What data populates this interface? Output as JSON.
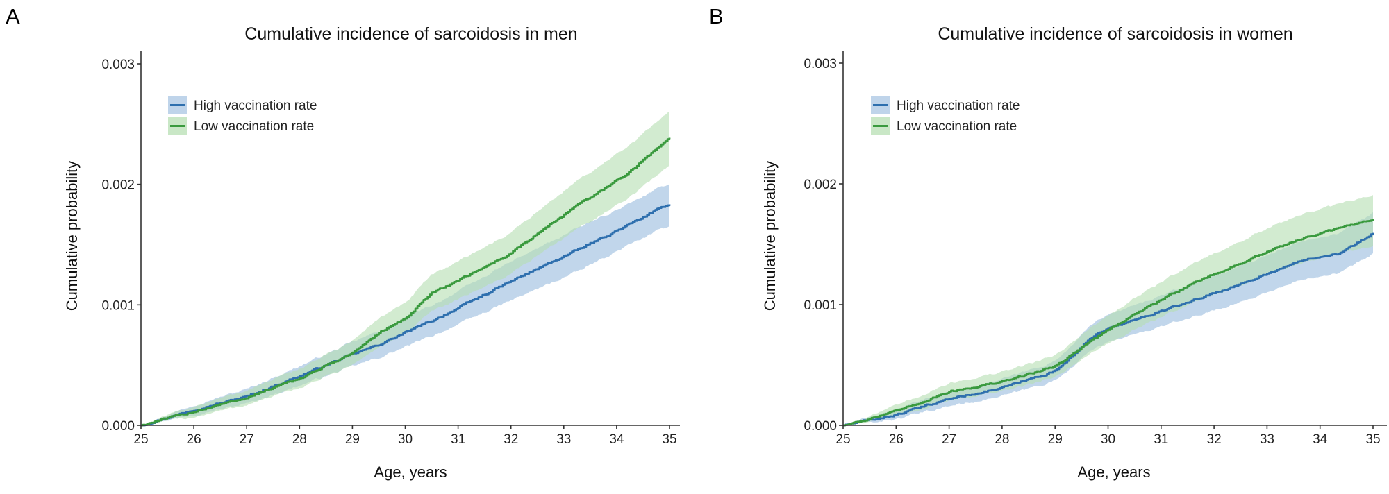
{
  "colors": {
    "high": "#2e6fae",
    "high_band": "#a9c6e3",
    "low": "#3a9a3e",
    "low_band": "#b7dfb3"
  },
  "chart_data": [
    {
      "panel_letter": "A",
      "type": "line",
      "title": "Cumulative incidence of sarcoidosis in men",
      "xlabel": "Age, years",
      "ylabel": "Cumulative probability",
      "xlim": [
        25,
        35
      ],
      "ylim": [
        0,
        0.003
      ],
      "xticks": [
        "25",
        "26",
        "27",
        "28",
        "29",
        "30",
        "31",
        "32",
        "33",
        "34",
        "35"
      ],
      "yticks": [
        "0.000",
        "0.001",
        "0.002",
        "0.003"
      ],
      "grid": false,
      "legend": {
        "position": "top-left",
        "entries": [
          "High vaccination rate",
          "Low vaccination rate"
        ]
      },
      "series": [
        {
          "name": "High vaccination rate",
          "x": [
            25,
            26,
            27,
            28,
            29,
            29.5,
            30,
            30.66,
            31.97,
            33.28,
            34.16,
            35
          ],
          "y": [
            0,
            0.00013,
            0.00024,
            0.00041,
            0.00059,
            0.00067,
            0.00077,
            0.0009,
            0.00119,
            0.00146,
            0.00165,
            0.00184
          ],
          "ci_lower": [
            0,
            9e-05,
            0.00018,
            0.00033,
            0.00049,
            0.00056,
            0.00065,
            0.00077,
            0.00103,
            0.00128,
            0.00148,
            0.00166
          ],
          "ci_upper": [
            0,
            0.00017,
            0.0003,
            0.00049,
            0.00069,
            0.00078,
            0.00089,
            0.00103,
            0.00135,
            0.00164,
            0.00182,
            0.00201
          ]
        },
        {
          "name": "Low vaccination rate",
          "x": [
            25,
            26,
            27,
            28,
            29,
            29.5,
            30,
            30.48,
            31.97,
            33.28,
            34.16,
            35
          ],
          "y": [
            0,
            0.000115,
            0.00023,
            0.00039,
            0.0006,
            0.00077,
            0.00088,
            0.00109,
            0.00142,
            0.00184,
            0.00207,
            0.00239
          ],
          "ci_lower": [
            0,
            7e-05,
            0.00017,
            0.00031,
            0.0005,
            0.00065,
            0.00075,
            0.00094,
            0.00125,
            0.00164,
            0.00186,
            0.00216
          ],
          "ci_upper": [
            0,
            0.00016,
            0.00029,
            0.00047,
            0.0007,
            0.00089,
            0.00101,
            0.00124,
            0.00159,
            0.00204,
            0.00229,
            0.00261
          ]
        }
      ]
    },
    {
      "panel_letter": "B",
      "type": "line",
      "title": "Cumulative incidence of sarcoidosis in women",
      "xlabel": "Age, years",
      "ylabel": "Cumulative probability",
      "xlim": [
        25,
        35
      ],
      "ylim": [
        0,
        0.003
      ],
      "xticks": [
        "25",
        "26",
        "27",
        "28",
        "29",
        "30",
        "31",
        "32",
        "33",
        "34",
        "35"
      ],
      "yticks": [
        "0.000",
        "0.001",
        "0.002",
        "0.003"
      ],
      "grid": false,
      "legend": {
        "position": "top-left",
        "entries": [
          "High vaccination rate",
          "Low vaccination rate"
        ]
      },
      "series": [
        {
          "name": "High vaccination rate",
          "x": [
            25,
            26,
            27,
            28,
            29,
            29.8,
            31.1,
            32.43,
            33.74,
            34.4,
            35
          ],
          "y": [
            0,
            8.7e-05,
            0.00022,
            0.00031,
            0.00045,
            0.00077,
            0.00096,
            0.00116,
            0.00138,
            0.00143,
            0.00159
          ],
          "ci_lower": [
            0,
            5e-05,
            0.00016,
            0.00024,
            0.00037,
            0.00066,
            0.00083,
            0.00101,
            0.00122,
            0.00127,
            0.00142
          ],
          "ci_upper": [
            0,
            0.00013,
            0.00028,
            0.00038,
            0.00053,
            0.00088,
            0.00109,
            0.00131,
            0.00154,
            0.0016,
            0.00176
          ]
        },
        {
          "name": "Low vaccination rate",
          "x": [
            25,
            26,
            27,
            28,
            29,
            29.8,
            30.5,
            31.55,
            32.43,
            33.52,
            35
          ],
          "y": [
            0,
            0.000115,
            0.00028,
            0.00036,
            0.00049,
            0.00074,
            0.00092,
            0.00117,
            0.00133,
            0.00153,
            0.00171
          ],
          "ci_lower": [
            0,
            7e-05,
            0.00021,
            0.00028,
            0.0004,
            0.00063,
            0.00079,
            0.00101,
            0.00115,
            0.00133,
            0.00149
          ],
          "ci_upper": [
            0,
            0.00016,
            0.00035,
            0.00044,
            0.00058,
            0.00085,
            0.00105,
            0.00133,
            0.00151,
            0.00173,
            0.00191
          ]
        }
      ]
    }
  ]
}
